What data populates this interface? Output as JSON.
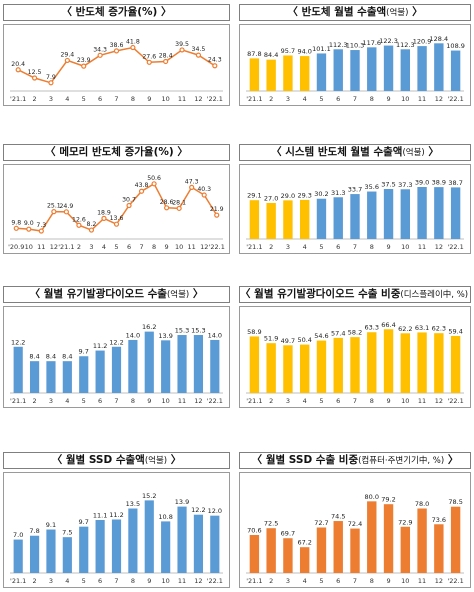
{
  "colors": {
    "blue": "#5b9bd5",
    "yellow": "#ffc000",
    "orange": "#ed7d31",
    "line": "#ed7d31"
  },
  "chart_data": [
    {
      "id": "c1",
      "type": "line",
      "title": "반도체 증가율(%)",
      "unit": "",
      "categories": [
        "'21.1",
        "2",
        "3",
        "4",
        "5",
        "6",
        "7",
        "8",
        "9",
        "10",
        "11",
        "12",
        "'22.1"
      ],
      "values": [
        20.4,
        12.5,
        7.9,
        29.4,
        23.9,
        34.3,
        38.6,
        41.8,
        27.6,
        28.4,
        39.5,
        34.5,
        24.3
      ],
      "ylim": [
        0,
        50
      ]
    },
    {
      "id": "c2",
      "type": "bar",
      "title": "반도체 월별 수출액",
      "unit": "(억불)",
      "categories": [
        "'21.1",
        "2",
        "3",
        "4",
        "5",
        "6",
        "7",
        "8",
        "9",
        "10",
        "11",
        "12",
        "'22.1"
      ],
      "values": [
        87.8,
        84.4,
        95.7,
        94.0,
        101.1,
        112.3,
        110.3,
        117.6,
        122.3,
        112.3,
        120.9,
        128.4,
        108.9
      ],
      "colors": [
        "yellow",
        "yellow",
        "yellow",
        "yellow",
        "blue",
        "blue",
        "blue",
        "blue",
        "blue",
        "blue",
        "blue",
        "blue",
        "blue"
      ],
      "ylim": [
        0,
        140
      ]
    },
    {
      "id": "c3",
      "type": "line",
      "title": "메모리 반도체 증가율(%)",
      "unit": "",
      "categories": [
        "'20.9",
        "10",
        "11",
        "12",
        "'21.1",
        "2",
        "3",
        "4",
        "5",
        "6",
        "7",
        "8",
        "9",
        "10",
        "11",
        "12",
        "'22.1"
      ],
      "values": [
        9.8,
        9.0,
        7.3,
        25.1,
        24.9,
        12.6,
        8.2,
        18.9,
        13.6,
        30.7,
        43.8,
        50.6,
        28.6,
        28.1,
        47.3,
        40.3,
        21.9
      ],
      "ylim": [
        0,
        55
      ]
    },
    {
      "id": "c4",
      "type": "bar",
      "title": "시스템 반도체 월별 수출액",
      "unit": "(억불)",
      "categories": [
        "'21.1",
        "2",
        "3",
        "4",
        "5",
        "6",
        "7",
        "8",
        "9",
        "10",
        "11",
        "12",
        "'22.1"
      ],
      "values": [
        29.1,
        27.0,
        29.0,
        29.3,
        30.2,
        31.3,
        33.7,
        35.6,
        37.5,
        37.3,
        39.0,
        38.9,
        38.7
      ],
      "colors": [
        "yellow",
        "yellow",
        "yellow",
        "yellow",
        "blue",
        "blue",
        "blue",
        "blue",
        "blue",
        "blue",
        "blue",
        "blue",
        "blue"
      ],
      "ylim": [
        0,
        45
      ]
    },
    {
      "id": "c5",
      "type": "bar",
      "title": "월별 유기발광다이오드 수출",
      "unit": "(억불)",
      "categories": [
        "'21.1",
        "2",
        "3",
        "4",
        "5",
        "6",
        "7",
        "8",
        "9",
        "10",
        "11",
        "12",
        "'22.1"
      ],
      "values": [
        12.2,
        8.4,
        8.4,
        8.4,
        9.7,
        11.2,
        12.2,
        14.0,
        16.2,
        13.9,
        15.3,
        15.3,
        14.0
      ],
      "colors": [
        "blue",
        "blue",
        "blue",
        "blue",
        "blue",
        "blue",
        "blue",
        "blue",
        "blue",
        "blue",
        "blue",
        "blue",
        "blue"
      ],
      "ylim": [
        0,
        19
      ]
    },
    {
      "id": "c6",
      "type": "bar",
      "title": "월별 유기발광다이오드 수출 비중",
      "unit": "(디스플레이中, %)",
      "categories": [
        "'21.1",
        "2",
        "3",
        "4",
        "5",
        "6",
        "7",
        "8",
        "9",
        "10",
        "11",
        "12",
        "'22.1"
      ],
      "values": [
        58.9,
        51.9,
        49.7,
        50.4,
        54.6,
        57.4,
        58.2,
        63.3,
        66.4,
        62.2,
        63.1,
        62.3,
        59.4
      ],
      "colors": [
        "yellow",
        "yellow",
        "yellow",
        "yellow",
        "yellow",
        "yellow",
        "yellow",
        "yellow",
        "yellow",
        "yellow",
        "yellow",
        "yellow",
        "yellow"
      ],
      "ylim": [
        0,
        75
      ]
    },
    {
      "id": "c7",
      "type": "bar",
      "title": "월별 SSD 수출액",
      "unit": "(억불)",
      "categories": [
        "'21.1",
        "2",
        "3",
        "4",
        "5",
        "6",
        "7",
        "8",
        "9",
        "10",
        "11",
        "12",
        "'22.1"
      ],
      "values": [
        7.0,
        7.8,
        9.1,
        7.5,
        9.7,
        11.1,
        11.2,
        13.5,
        15.2,
        10.8,
        13.9,
        12.2,
        12.0
      ],
      "colors": [
        "blue",
        "blue",
        "blue",
        "blue",
        "blue",
        "blue",
        "blue",
        "blue",
        "blue",
        "blue",
        "blue",
        "blue",
        "blue"
      ],
      "ylim": [
        0,
        18
      ]
    },
    {
      "id": "c8",
      "type": "bar",
      "title": "월별 SSD 수출 비중",
      "unit": "(컴퓨터·주변기기中, %)",
      "categories": [
        "'21.1",
        "2",
        "3",
        "4",
        "5",
        "6",
        "7",
        "8",
        "9",
        "10",
        "11",
        "12",
        "'22.1"
      ],
      "values": [
        70.6,
        72.5,
        69.7,
        67.2,
        72.7,
        74.5,
        72.4,
        80.0,
        79.2,
        72.9,
        78.0,
        73.6,
        78.5
      ],
      "colors": [
        "orange",
        "orange",
        "orange",
        "orange",
        "orange",
        "orange",
        "orange",
        "orange",
        "orange",
        "orange",
        "orange",
        "orange",
        "orange"
      ],
      "ylim": [
        60,
        84
      ]
    }
  ]
}
